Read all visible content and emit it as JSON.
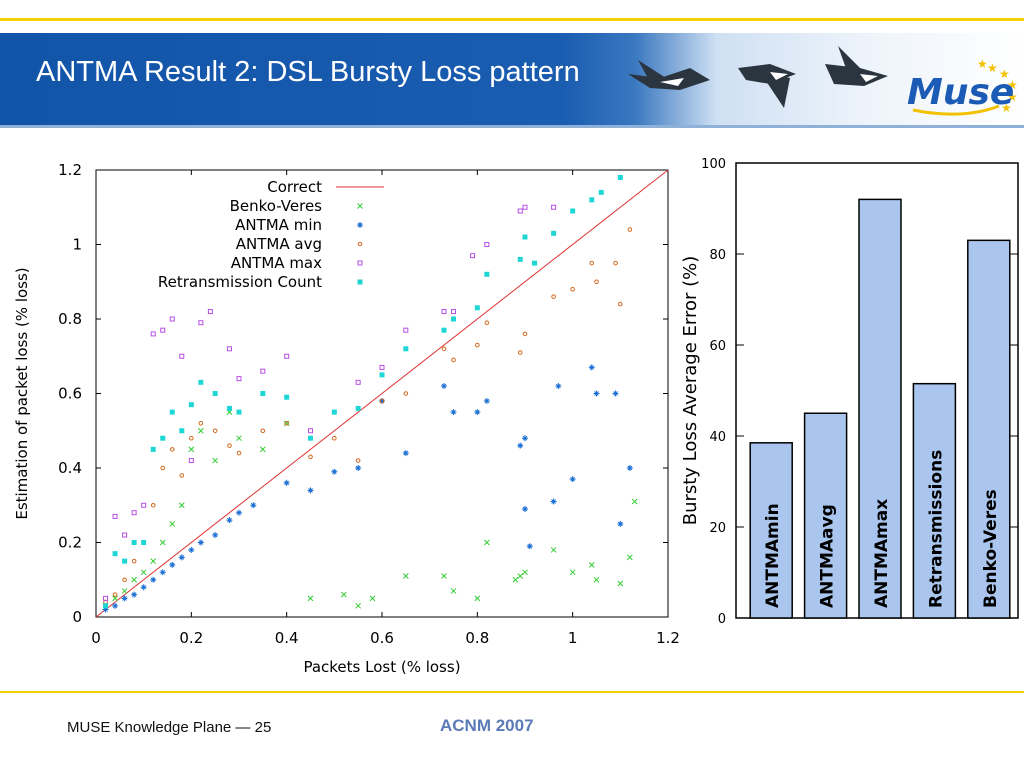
{
  "slide": {
    "title": "ANTMA Result 2: DSL Bursty Loss pattern",
    "footer_left": "MUSE Knowledge Plane — 25",
    "footer_center": "ACNM 2007",
    "logo_text": "Muse"
  },
  "colors": {
    "banner": "#1a5cb0",
    "accent_rule": "#f5d000",
    "footer_center": "#5a7bb8",
    "bar_fill": "#aac6ee"
  },
  "chart_data": [
    {
      "type": "scatter",
      "xlabel": "Packets Lost (% loss)",
      "ylabel": "Estimation of packet loss (% loss)",
      "xlim": [
        0,
        1.2
      ],
      "ylim": [
        0,
        1.2
      ],
      "xticks": [
        "0",
        "0.2",
        "0.4",
        "0.6",
        "0.8",
        "1",
        "1.2"
      ],
      "yticks": [
        "0",
        "0.2",
        "0.4",
        "0.6",
        "0.8",
        "1",
        "1.2"
      ],
      "grid": false,
      "legend_position": "top-left",
      "series": [
        {
          "name": "Correct",
          "kind": "line",
          "color": "#e03030",
          "points": [
            [
              0.0,
              0.0
            ],
            [
              1.2,
              1.2
            ]
          ]
        },
        {
          "name": "Benko-Veres",
          "kind": "x",
          "color": "#33cc33",
          "points": [
            [
              0.02,
              0.03
            ],
            [
              0.04,
              0.05
            ],
            [
              0.06,
              0.07
            ],
            [
              0.08,
              0.1
            ],
            [
              0.1,
              0.12
            ],
            [
              0.12,
              0.15
            ],
            [
              0.14,
              0.2
            ],
            [
              0.16,
              0.25
            ],
            [
              0.18,
              0.3
            ],
            [
              0.2,
              0.45
            ],
            [
              0.22,
              0.5
            ],
            [
              0.25,
              0.42
            ],
            [
              0.28,
              0.55
            ],
            [
              0.3,
              0.48
            ],
            [
              0.35,
              0.45
            ],
            [
              0.4,
              0.52
            ],
            [
              0.45,
              0.05
            ],
            [
              0.52,
              0.06
            ],
            [
              0.55,
              0.03
            ],
            [
              0.58,
              0.05
            ],
            [
              0.65,
              0.11
            ],
            [
              0.73,
              0.11
            ],
            [
              0.75,
              0.07
            ],
            [
              0.8,
              0.05
            ],
            [
              0.82,
              0.2
            ],
            [
              0.88,
              0.1
            ],
            [
              0.89,
              0.11
            ],
            [
              0.9,
              0.12
            ],
            [
              0.96,
              0.18
            ],
            [
              1.0,
              0.12
            ],
            [
              1.04,
              0.14
            ],
            [
              1.05,
              0.1
            ],
            [
              1.1,
              0.09
            ],
            [
              1.12,
              0.16
            ],
            [
              1.13,
              0.31
            ]
          ]
        },
        {
          "name": "ANTMA min",
          "kind": "star",
          "color": "#1a6fd4",
          "points": [
            [
              0.02,
              0.02
            ],
            [
              0.04,
              0.03
            ],
            [
              0.06,
              0.05
            ],
            [
              0.08,
              0.06
            ],
            [
              0.1,
              0.08
            ],
            [
              0.12,
              0.1
            ],
            [
              0.14,
              0.12
            ],
            [
              0.16,
              0.14
            ],
            [
              0.18,
              0.16
            ],
            [
              0.2,
              0.18
            ],
            [
              0.22,
              0.2
            ],
            [
              0.25,
              0.22
            ],
            [
              0.28,
              0.26
            ],
            [
              0.3,
              0.28
            ],
            [
              0.33,
              0.3
            ],
            [
              0.4,
              0.36
            ],
            [
              0.45,
              0.34
            ],
            [
              0.5,
              0.39
            ],
            [
              0.55,
              0.4
            ],
            [
              0.6,
              0.58
            ],
            [
              0.65,
              0.44
            ],
            [
              0.73,
              0.62
            ],
            [
              0.75,
              0.55
            ],
            [
              0.8,
              0.55
            ],
            [
              0.82,
              0.58
            ],
            [
              0.89,
              0.46
            ],
            [
              0.9,
              0.48
            ],
            [
              0.9,
              0.29
            ],
            [
              0.91,
              0.19
            ],
            [
              0.96,
              0.31
            ],
            [
              0.97,
              0.62
            ],
            [
              1.0,
              0.37
            ],
            [
              1.04,
              0.67
            ],
            [
              1.05,
              0.6
            ],
            [
              1.09,
              0.6
            ],
            [
              1.1,
              0.25
            ],
            [
              1.12,
              0.4
            ]
          ]
        },
        {
          "name": "ANTMA avg",
          "kind": "o",
          "color": "#d2691e",
          "points": [
            [
              0.02,
              0.04
            ],
            [
              0.04,
              0.06
            ],
            [
              0.06,
              0.1
            ],
            [
              0.08,
              0.15
            ],
            [
              0.1,
              0.2
            ],
            [
              0.12,
              0.3
            ],
            [
              0.14,
              0.4
            ],
            [
              0.16,
              0.45
            ],
            [
              0.18,
              0.38
            ],
            [
              0.2,
              0.48
            ],
            [
              0.22,
              0.52
            ],
            [
              0.25,
              0.5
            ],
            [
              0.28,
              0.46
            ],
            [
              0.3,
              0.44
            ],
            [
              0.35,
              0.5
            ],
            [
              0.4,
              0.52
            ],
            [
              0.45,
              0.43
            ],
            [
              0.5,
              0.48
            ],
            [
              0.55,
              0.42
            ],
            [
              0.6,
              0.58
            ],
            [
              0.65,
              0.6
            ],
            [
              0.73,
              0.72
            ],
            [
              0.75,
              0.69
            ],
            [
              0.8,
              0.73
            ],
            [
              0.82,
              0.79
            ],
            [
              0.89,
              0.71
            ],
            [
              0.9,
              0.76
            ],
            [
              0.96,
              0.86
            ],
            [
              1.0,
              0.88
            ],
            [
              1.04,
              0.95
            ],
            [
              1.05,
              0.9
            ],
            [
              1.09,
              0.95
            ],
            [
              1.1,
              0.84
            ],
            [
              1.12,
              1.04
            ]
          ]
        },
        {
          "name": "ANTMA max",
          "kind": "square",
          "color": "#b84ee8",
          "points": [
            [
              0.02,
              0.05
            ],
            [
              0.04,
              0.27
            ],
            [
              0.06,
              0.22
            ],
            [
              0.08,
              0.28
            ],
            [
              0.1,
              0.3
            ],
            [
              0.12,
              0.76
            ],
            [
              0.14,
              0.77
            ],
            [
              0.16,
              0.8
            ],
            [
              0.18,
              0.7
            ],
            [
              0.2,
              0.42
            ],
            [
              0.22,
              0.79
            ],
            [
              0.24,
              0.82
            ],
            [
              0.28,
              0.72
            ],
            [
              0.3,
              0.64
            ],
            [
              0.35,
              0.66
            ],
            [
              0.4,
              0.7
            ],
            [
              0.45,
              0.5
            ],
            [
              0.55,
              0.63
            ],
            [
              0.6,
              0.67
            ],
            [
              0.65,
              0.77
            ],
            [
              0.73,
              0.82
            ],
            [
              0.75,
              0.82
            ],
            [
              0.79,
              0.97
            ],
            [
              0.82,
              1.0
            ],
            [
              0.89,
              1.09
            ],
            [
              0.9,
              1.1
            ],
            [
              0.96,
              1.1
            ]
          ]
        },
        {
          "name": "Retransmission Count",
          "kind": "filled-square",
          "color": "#1fd6d6",
          "points": [
            [
              0.02,
              0.03
            ],
            [
              0.04,
              0.17
            ],
            [
              0.06,
              0.15
            ],
            [
              0.08,
              0.2
            ],
            [
              0.1,
              0.2
            ],
            [
              0.12,
              0.45
            ],
            [
              0.14,
              0.48
            ],
            [
              0.16,
              0.55
            ],
            [
              0.18,
              0.5
            ],
            [
              0.2,
              0.57
            ],
            [
              0.22,
              0.63
            ],
            [
              0.25,
              0.6
            ],
            [
              0.28,
              0.56
            ],
            [
              0.3,
              0.55
            ],
            [
              0.35,
              0.6
            ],
            [
              0.4,
              0.59
            ],
            [
              0.45,
              0.48
            ],
            [
              0.5,
              0.55
            ],
            [
              0.55,
              0.56
            ],
            [
              0.6,
              0.65
            ],
            [
              0.65,
              0.72
            ],
            [
              0.73,
              0.77
            ],
            [
              0.75,
              0.8
            ],
            [
              0.8,
              0.83
            ],
            [
              0.82,
              0.92
            ],
            [
              0.89,
              0.96
            ],
            [
              0.9,
              1.02
            ],
            [
              0.92,
              0.95
            ],
            [
              0.96,
              1.03
            ],
            [
              1.0,
              1.09
            ],
            [
              1.04,
              1.12
            ],
            [
              1.06,
              1.14
            ],
            [
              1.1,
              1.18
            ]
          ]
        }
      ]
    },
    {
      "type": "bar",
      "ylabel": "Bursty Loss Average Error (%)",
      "ylim": [
        0,
        100
      ],
      "yticks": [
        "0",
        "20",
        "40",
        "60",
        "80",
        "100"
      ],
      "categories": [
        "ANTMAmin",
        "ANTMAavg",
        "ANTMAmax",
        "Retransmissions",
        "Benko-Veres"
      ],
      "values": [
        38.5,
        45,
        92,
        51.5,
        83
      ],
      "grid": false
    }
  ]
}
